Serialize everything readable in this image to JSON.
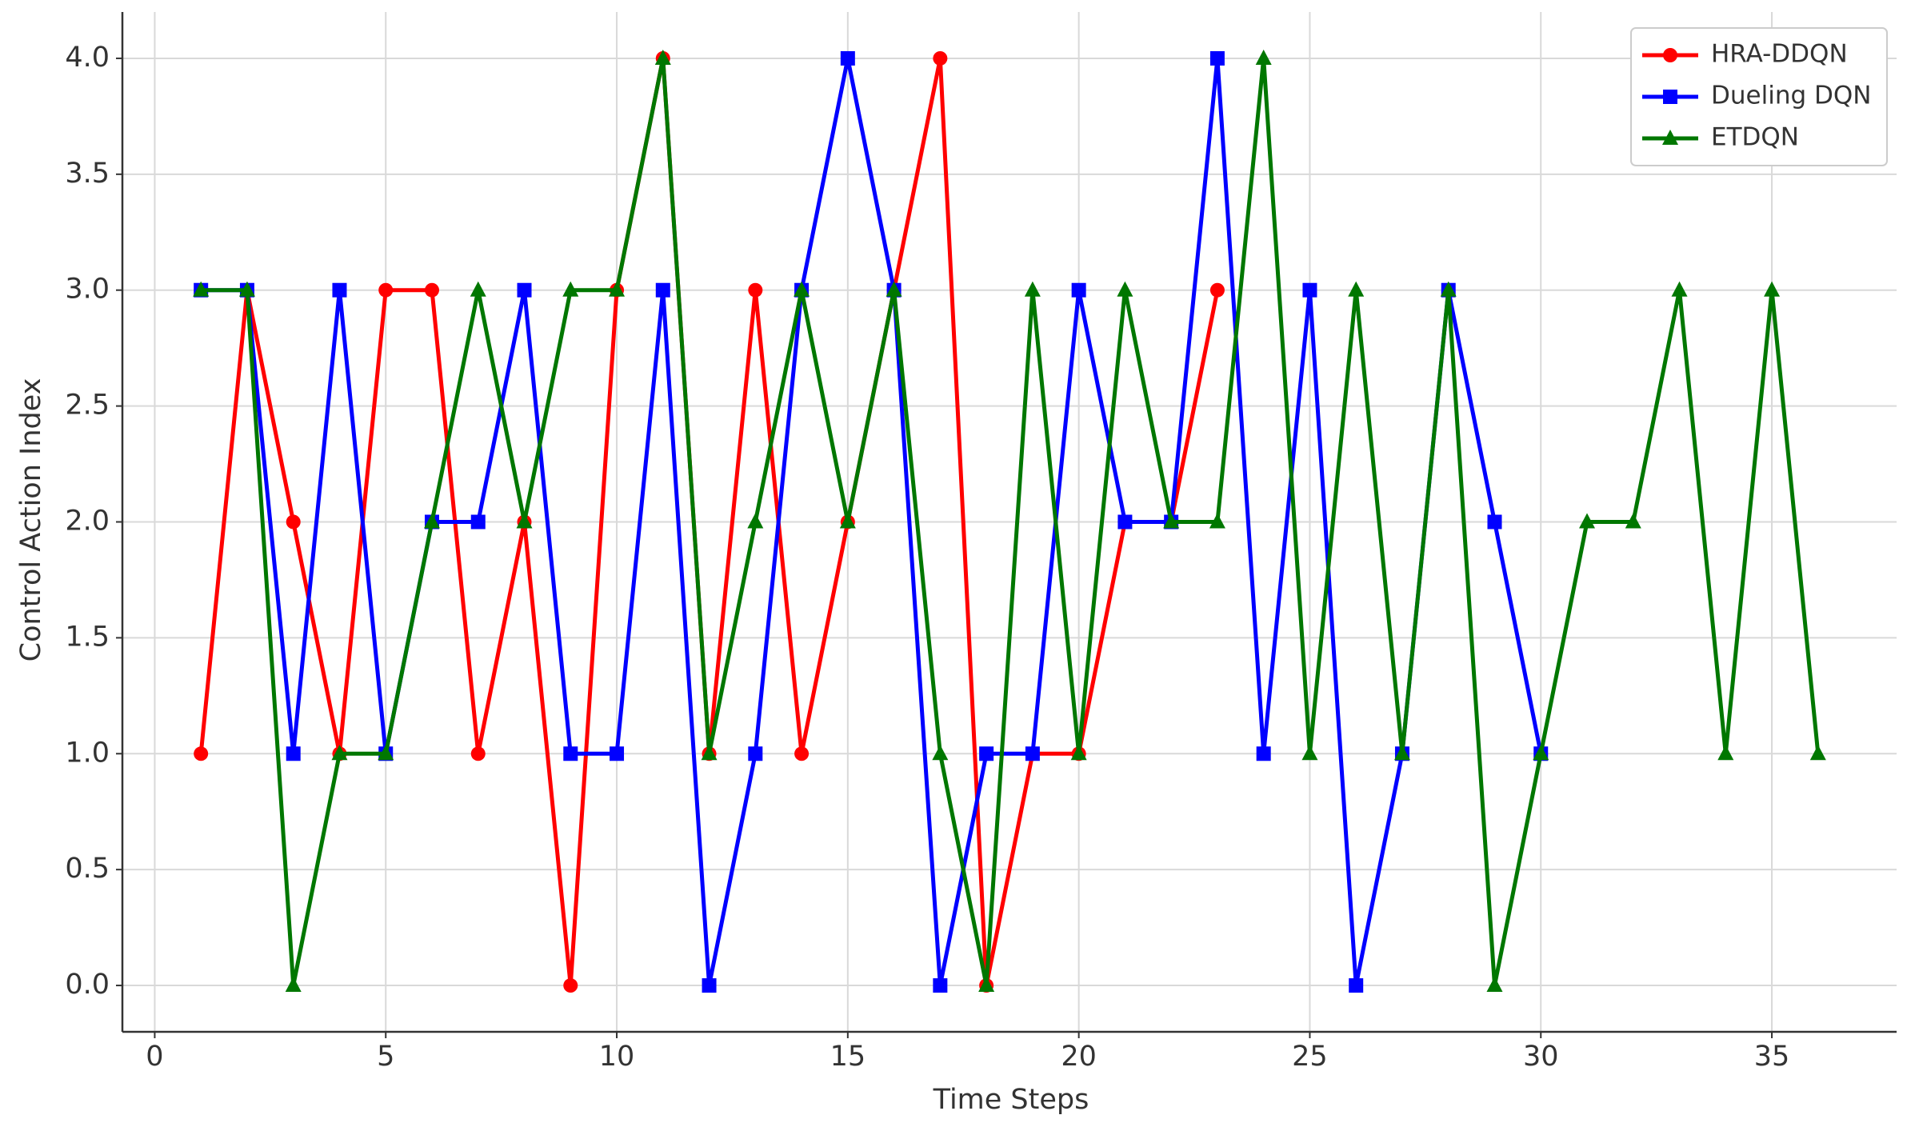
{
  "chart_data": {
    "type": "line",
    "xlabel": "Time Steps",
    "ylabel": "Control Action Index",
    "xlim": [
      -0.7,
      37.7
    ],
    "ylim": [
      -0.2,
      4.2
    ],
    "xticks": [
      0,
      5,
      10,
      15,
      20,
      25,
      30,
      35
    ],
    "yticks": [
      {
        "value": 0,
        "label": "0.0"
      },
      {
        "value": 0.5,
        "label": "0.5"
      },
      {
        "value": 1,
        "label": "1.0"
      },
      {
        "value": 1.5,
        "label": "1.5"
      },
      {
        "value": 2,
        "label": "2.0"
      },
      {
        "value": 2.5,
        "label": "2.5"
      },
      {
        "value": 3,
        "label": "3.0"
      },
      {
        "value": 3.5,
        "label": "3.5"
      },
      {
        "value": 4,
        "label": "4.0"
      }
    ],
    "grid": true,
    "legend": "upper right",
    "series": [
      {
        "name": "HRA-DDQN",
        "color": "#ff0000",
        "marker": "circle",
        "x": [
          1,
          2,
          3,
          4,
          5,
          6,
          7,
          8,
          9,
          10,
          11,
          12,
          13,
          14,
          15,
          16,
          17,
          18,
          19,
          20,
          21,
          22,
          23
        ],
        "values": [
          1,
          3,
          2,
          1,
          3,
          3,
          1,
          2,
          0,
          3,
          4,
          1,
          3,
          1,
          2,
          3,
          4,
          0,
          1,
          1,
          2,
          2,
          3
        ]
      },
      {
        "name": "Dueling DQN",
        "color": "#0000ff",
        "marker": "square",
        "x": [
          1,
          2,
          3,
          4,
          5,
          6,
          7,
          8,
          9,
          10,
          11,
          12,
          13,
          14,
          15,
          16,
          17,
          18,
          19,
          20,
          21,
          22,
          23,
          24,
          25,
          26,
          27,
          28,
          29,
          30
        ],
        "values": [
          3,
          3,
          1,
          3,
          1,
          2,
          2,
          3,
          1,
          1,
          3,
          0,
          1,
          3,
          4,
          3,
          0,
          1,
          1,
          3,
          2,
          2,
          4,
          1,
          3,
          0,
          1,
          3,
          2,
          1
        ]
      },
      {
        "name": "ETDQN",
        "color": "#007700",
        "marker": "triangle",
        "x": [
          1,
          2,
          3,
          4,
          5,
          6,
          7,
          8,
          9,
          10,
          11,
          12,
          13,
          14,
          15,
          16,
          17,
          18,
          19,
          20,
          21,
          22,
          23,
          24,
          25,
          26,
          27,
          28,
          29,
          30,
          31,
          32,
          33,
          34,
          35,
          36
        ],
        "values": [
          3,
          3,
          0,
          1,
          1,
          2,
          3,
          2,
          3,
          3,
          4,
          1,
          2,
          3,
          2,
          3,
          1,
          0,
          3,
          1,
          3,
          2,
          2,
          4,
          1,
          3,
          1,
          3,
          0,
          1,
          2,
          2,
          3,
          1,
          3,
          1
        ]
      }
    ]
  }
}
